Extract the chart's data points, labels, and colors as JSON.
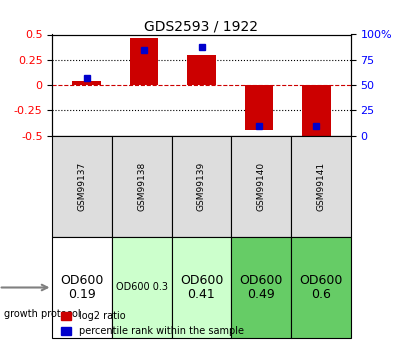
{
  "title": "GDS2593 / 1922",
  "samples": [
    "GSM99137",
    "GSM99138",
    "GSM99139",
    "GSM99140",
    "GSM99141"
  ],
  "log2_ratio": [
    0.04,
    0.47,
    0.3,
    -0.44,
    -0.52
  ],
  "percentile_rank": [
    57,
    85,
    88,
    10,
    10
  ],
  "ylim_left": [
    -0.5,
    0.5
  ],
  "ylim_right": [
    0,
    100
  ],
  "yticks_left": [
    -0.5,
    -0.25,
    0,
    0.25,
    0.5
  ],
  "yticks_right": [
    0,
    25,
    50,
    75,
    100
  ],
  "hlines": [
    0.25,
    -0.25
  ],
  "bar_color": "#cc0000",
  "dot_color": "#0000cc",
  "background_color": "#ffffff",
  "grid_color": "#000000",
  "zero_line_color": "#cc0000",
  "protocol_labels": [
    "OD600\n0.19",
    "OD600 0.3",
    "OD600\n0.41",
    "OD600\n0.49",
    "OD600\n0.6"
  ],
  "protocol_colors": [
    "#ffffff",
    "#ccffcc",
    "#ccffcc",
    "#66cc66",
    "#66cc66"
  ],
  "protocol_fontsizes": [
    9,
    7,
    9,
    9,
    9
  ]
}
